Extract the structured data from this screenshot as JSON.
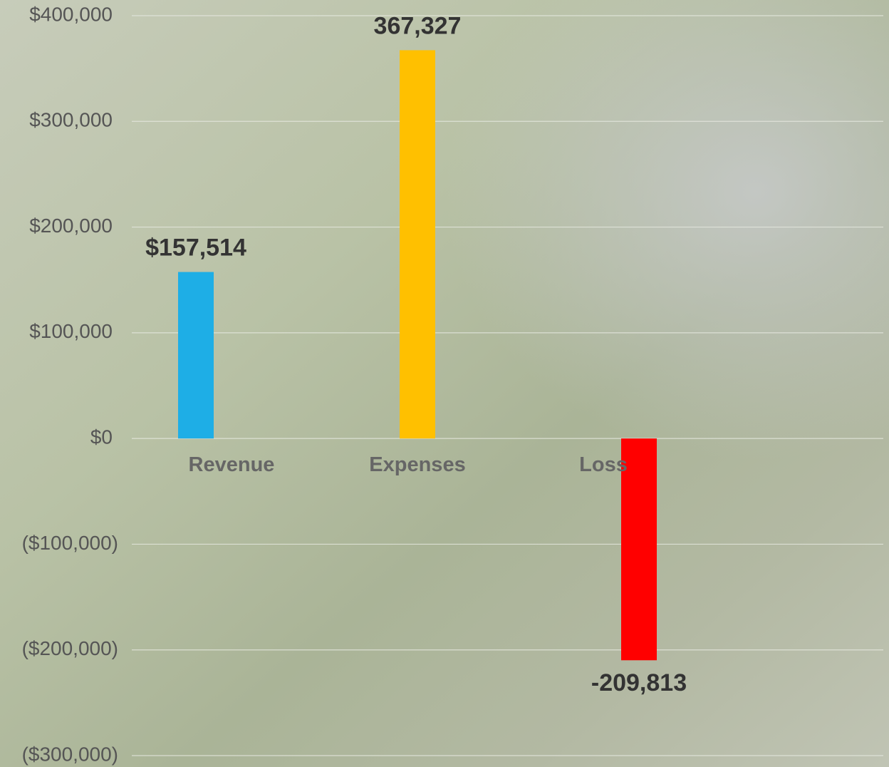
{
  "chart_data": {
    "type": "bar",
    "categories": [
      "Revenue",
      "Expenses",
      "Loss"
    ],
    "values": [
      157514,
      367327,
      -209813
    ],
    "value_labels": [
      "$157,514",
      "367,327",
      "-209,813"
    ],
    "colors": [
      "#1eaee6",
      "#ffc000",
      "#ff0000"
    ],
    "ylim": [
      -300000,
      400000
    ],
    "yticks": [
      {
        "value": 400000,
        "label": "$400,000"
      },
      {
        "value": 300000,
        "label": "$300,000"
      },
      {
        "value": 200000,
        "label": "$200,000"
      },
      {
        "value": 100000,
        "label": "$100,000"
      },
      {
        "value": 0,
        "label": "$0"
      },
      {
        "value": -100000,
        "label": "($100,000)"
      },
      {
        "value": -200000,
        "label": "($200,000)"
      },
      {
        "value": -300000,
        "label": "($300,000)"
      }
    ],
    "negative_tick_color": "#ff0000",
    "grid": true
  }
}
